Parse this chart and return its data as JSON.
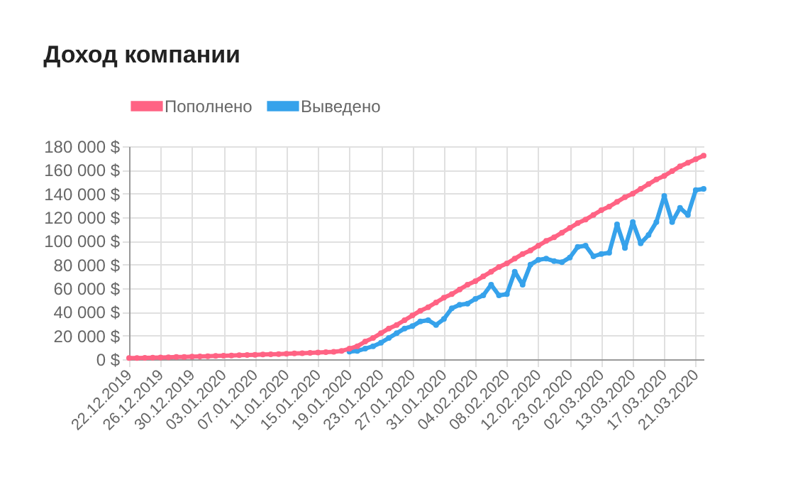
{
  "chart_data": {
    "type": "line",
    "title": "Доход компании",
    "categories": [
      "22.12.2019",
      null,
      null,
      null,
      "26.12.2019",
      null,
      null,
      null,
      "30.12.2019",
      null,
      null,
      null,
      "03.01.2020",
      null,
      null,
      null,
      "07.01.2020",
      null,
      null,
      null,
      "11.01.2020",
      null,
      null,
      null,
      "15.01.2020",
      null,
      null,
      null,
      "19.01.2020",
      null,
      null,
      null,
      "23.01.2020",
      null,
      null,
      null,
      "27.01.2020",
      null,
      null,
      null,
      "31.01.2020",
      null,
      null,
      null,
      "04.02.2020",
      null,
      null,
      null,
      "08.02.2020",
      null,
      null,
      null,
      "12.02.2020",
      null,
      null,
      null,
      "23.02.2020",
      null,
      null,
      null,
      "02.03.2020",
      null,
      null,
      null,
      "13.03.2020",
      null,
      null,
      null,
      "17.03.2020",
      null,
      null,
      null,
      "21.03.2020",
      null
    ],
    "series": [
      {
        "name": "Пополнено",
        "color": "#ff6384",
        "values": [
          1000,
          1000,
          1200,
          1400,
          1500,
          1700,
          1900,
          2000,
          2200,
          2400,
          2600,
          2800,
          3000,
          3200,
          3400,
          3600,
          3800,
          4000,
          4200,
          4400,
          4600,
          4900,
          5100,
          5400,
          5700,
          6000,
          6300,
          7000,
          9000,
          11000,
          15000,
          18000,
          22000,
          26000,
          29000,
          33000,
          37000,
          41000,
          44000,
          48000,
          52000,
          55000,
          59000,
          63000,
          66000,
          70000,
          74000,
          78000,
          81000,
          85000,
          89000,
          92000,
          96000,
          100000,
          103000,
          107000,
          111000,
          115000,
          118000,
          122000,
          126000,
          129000,
          133000,
          137000,
          140000,
          144000,
          148000,
          152000,
          155000,
          159000,
          163000,
          166000,
          169000,
          172000
        ]
      },
      {
        "name": "Выведено",
        "color": "#36a2eb",
        "values": [
          null,
          null,
          null,
          null,
          null,
          null,
          null,
          null,
          null,
          null,
          null,
          null,
          null,
          null,
          null,
          null,
          null,
          null,
          null,
          null,
          null,
          null,
          null,
          null,
          null,
          null,
          null,
          null,
          6500,
          7000,
          9000,
          11000,
          14000,
          18000,
          22000,
          26000,
          28000,
          32000,
          33000,
          29000,
          34000,
          43000,
          46000,
          47000,
          51000,
          54000,
          63000,
          54000,
          55000,
          74000,
          63000,
          80000,
          84000,
          85000,
          83000,
          82000,
          86000,
          95000,
          96000,
          87000,
          89000,
          90000,
          114000,
          94000,
          116000,
          98000,
          105000,
          116000,
          138000,
          116000,
          128000,
          122000,
          143000,
          144000
        ]
      }
    ],
    "ylim": [
      0,
      180000
    ],
    "yticks": [
      {
        "value": 0,
        "label": "0 $"
      },
      {
        "value": 20000,
        "label": "20 000 $"
      },
      {
        "value": 40000,
        "label": "40 000 $"
      },
      {
        "value": 60000,
        "label": "60 000 $"
      },
      {
        "value": 80000,
        "label": "80 000 $"
      },
      {
        "value": 100000,
        "label": "100 000 $"
      },
      {
        "value": 120000,
        "label": "120 000 $"
      },
      {
        "value": 140000,
        "label": "140 000 $"
      },
      {
        "value": 160000,
        "label": "160 000 $"
      },
      {
        "value": 180000,
        "label": "180 000 $"
      }
    ],
    "grid": true,
    "legend": "top",
    "marker": "circle",
    "line_style": "solid"
  }
}
